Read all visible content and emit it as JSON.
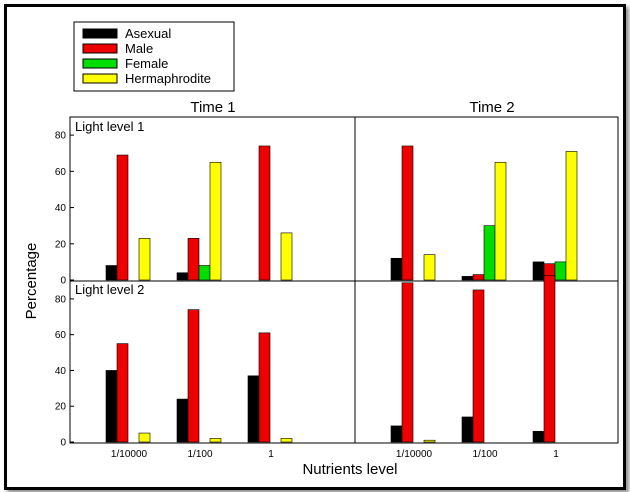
{
  "chart_data": {
    "type": "bar",
    "xlabel": "Nutrients level",
    "ylabel": "Percentage",
    "ylim": [
      0,
      90
    ],
    "yticks": [
      0,
      20,
      40,
      60,
      80
    ],
    "categories": [
      "1/10000",
      "1/100",
      "1"
    ],
    "series_names": [
      "Asexual",
      "Male",
      "Female",
      "Hermaphrodite"
    ],
    "colors": [
      "#000000",
      "#ee0000",
      "#00dd00",
      "#ffff00"
    ],
    "legend_position": "top-left",
    "columns": [
      "Time 1",
      "Time 2"
    ],
    "rows": [
      "Light level 1",
      "Light level 2"
    ],
    "panels": [
      {
        "time": "Time 1",
        "light": "Light level 1",
        "values": [
          [
            8,
            69,
            0,
            23
          ],
          [
            4,
            23,
            8,
            65
          ],
          [
            0,
            74,
            0,
            26
          ]
        ]
      },
      {
        "time": "Time 2",
        "light": "Light level 1",
        "values": [
          [
            12,
            74,
            0,
            14
          ],
          [
            2,
            3,
            30,
            65
          ],
          [
            10,
            9,
            10,
            71
          ]
        ]
      },
      {
        "time": "Time 1",
        "light": "Light level 2",
        "values": [
          [
            40,
            55,
            0,
            5
          ],
          [
            24,
            74,
            0,
            2
          ],
          [
            37,
            61,
            0,
            2
          ]
        ]
      },
      {
        "time": "Time 2",
        "light": "Light level 2",
        "values": [
          [
            9,
            89,
            0,
            1
          ],
          [
            14,
            85,
            0,
            0
          ],
          [
            6,
            93,
            0,
            0
          ]
        ]
      }
    ]
  }
}
